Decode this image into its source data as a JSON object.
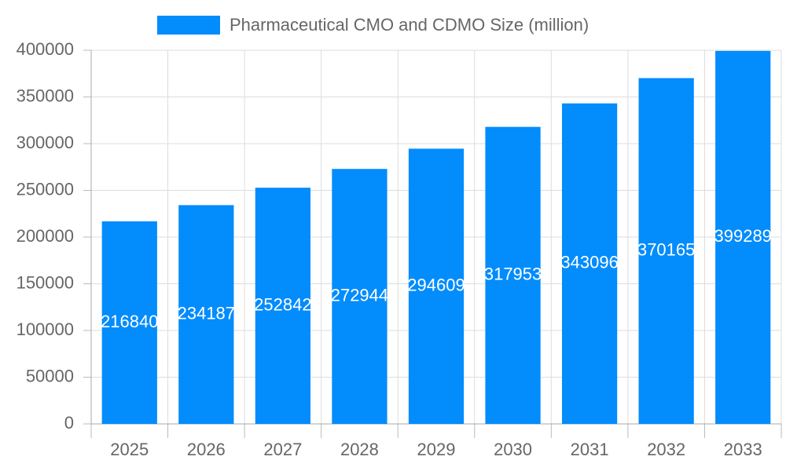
{
  "chart_data": {
    "type": "bar",
    "categories": [
      "2025",
      "2026",
      "2027",
      "2028",
      "2029",
      "2030",
      "2031",
      "2032",
      "2033"
    ],
    "series": [
      {
        "name": "Pharmaceutical CMO and CDMO Size (million)",
        "color": "#038cfc",
        "values": [
          216840,
          234187,
          252842,
          272944,
          294609,
          317953,
          343096,
          370165,
          399289
        ]
      }
    ],
    "ylim": [
      0,
      400000
    ],
    "yticks": [
      0,
      50000,
      100000,
      150000,
      200000,
      250000,
      300000,
      350000,
      400000
    ],
    "grid": true,
    "legend": "top",
    "data_labels": true
  }
}
